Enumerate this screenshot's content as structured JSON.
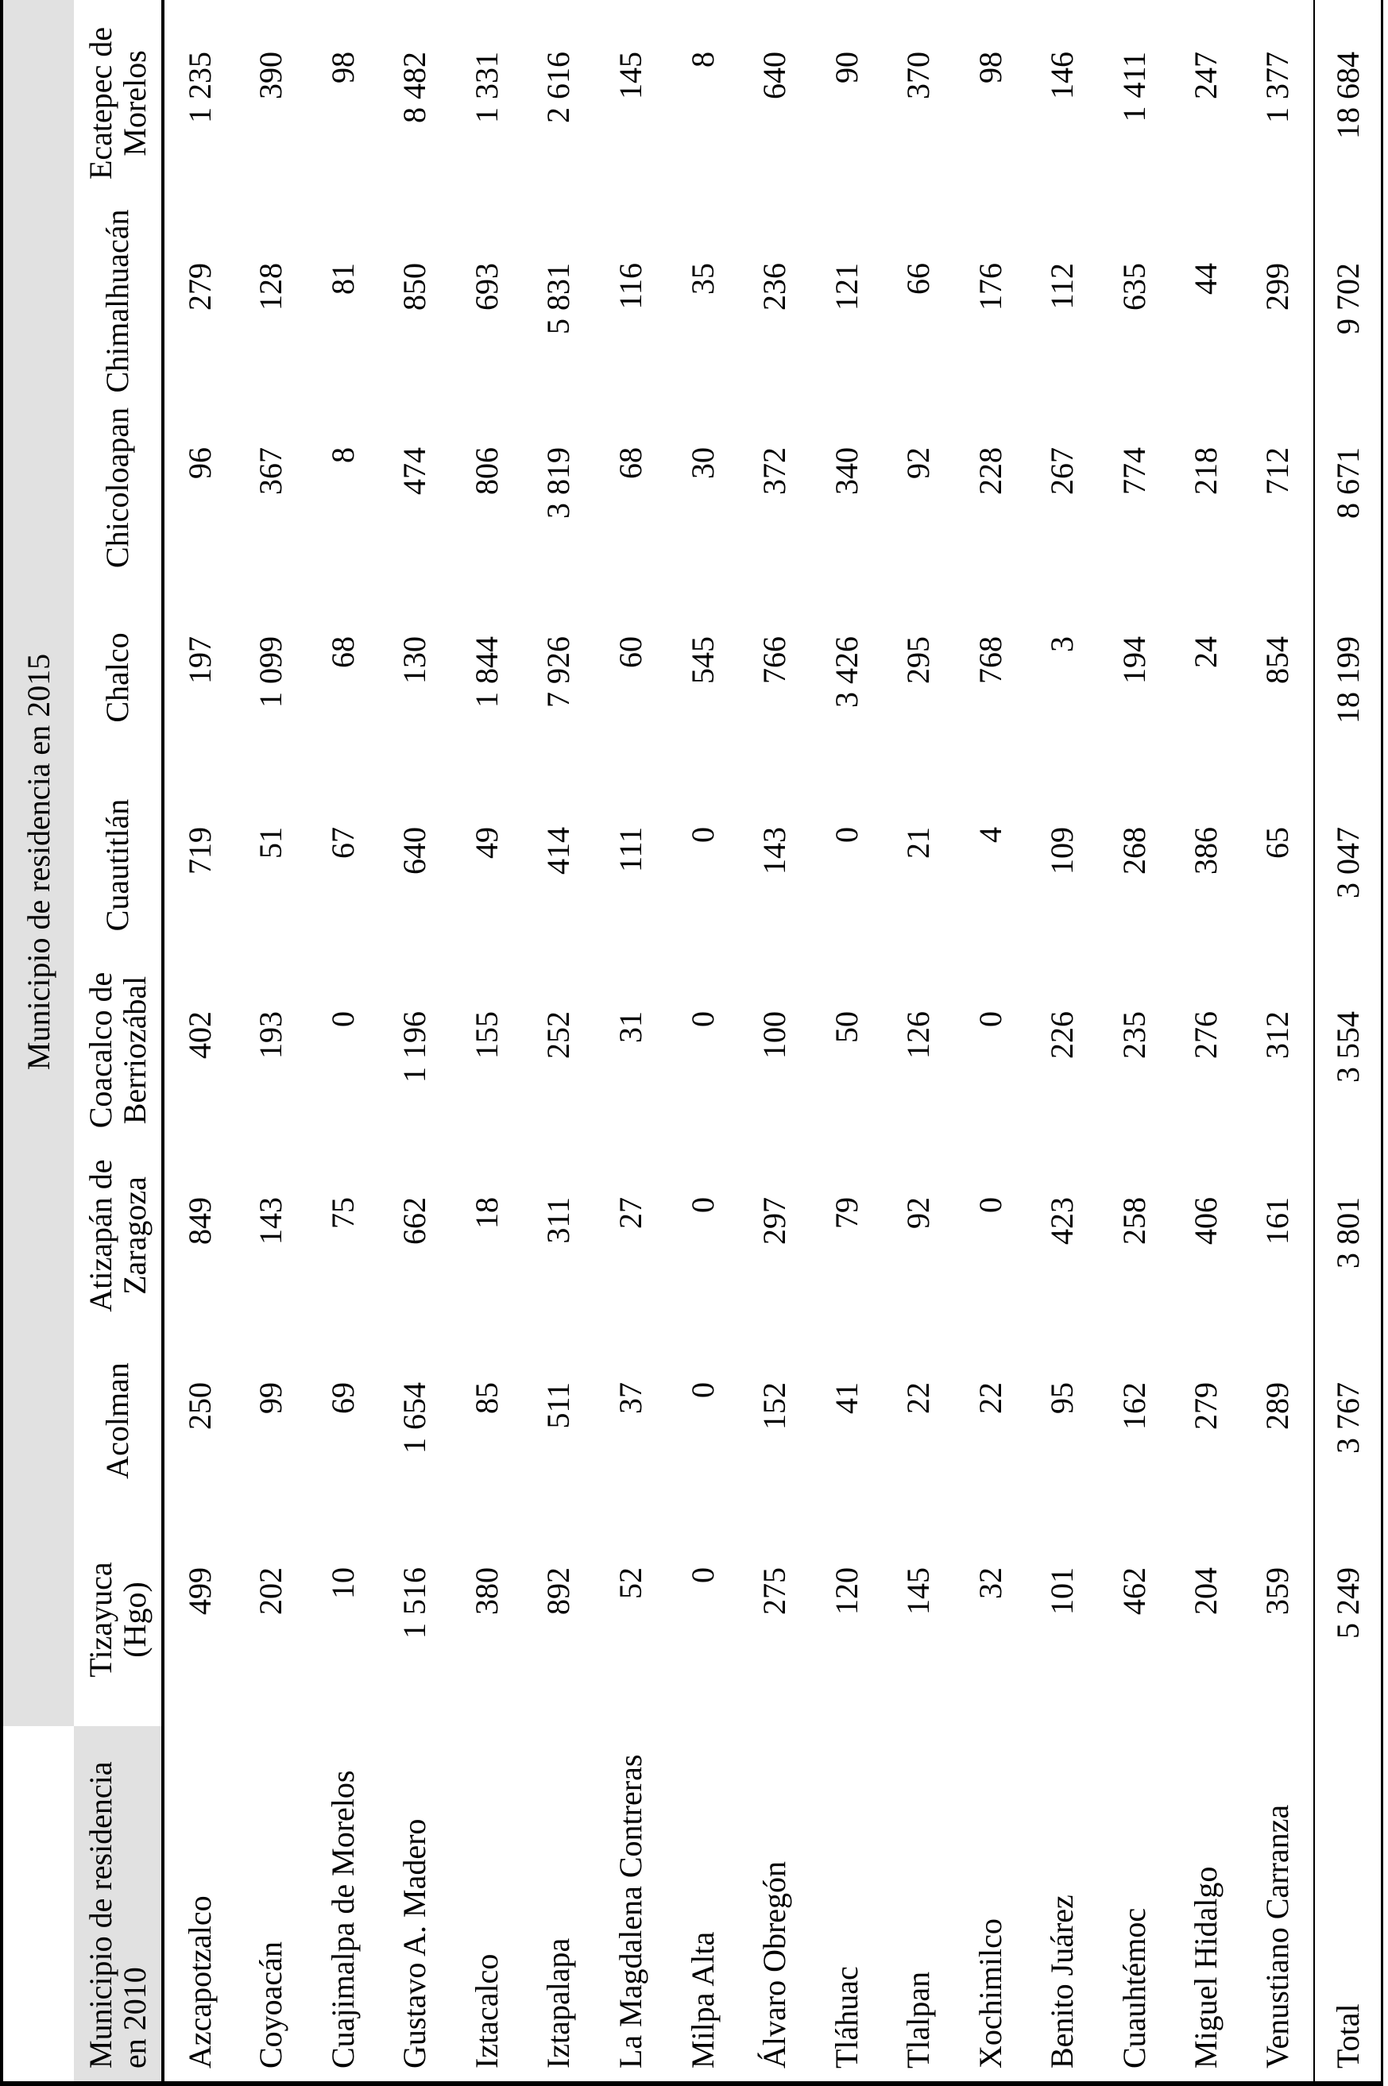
{
  "table": {
    "header_2015": "Municipio de residencia en 2015",
    "header_2010": {
      "line1": "Municipio de residencia",
      "line2": "en 2010"
    },
    "columns": [
      {
        "lines": [
          "Tizayuca",
          "(Hgo)"
        ]
      },
      {
        "lines": [
          "Acolman"
        ]
      },
      {
        "lines": [
          "Atizapán de",
          "Zaragoza"
        ]
      },
      {
        "lines": [
          "Coacalco de",
          "Berriozábal"
        ]
      },
      {
        "lines": [
          "Cuautitlán"
        ]
      },
      {
        "lines": [
          "Chalco"
        ]
      },
      {
        "lines": [
          "Chicoloapan"
        ]
      },
      {
        "lines": [
          "Chimalhuacán"
        ]
      },
      {
        "lines": [
          "Ecatepec de",
          "Morelos"
        ]
      }
    ],
    "rows": [
      {
        "label": "Azcapotzalco",
        "values": [
          "499",
          "250",
          "849",
          "402",
          "719",
          "197",
          "96",
          "279",
          "1 235"
        ]
      },
      {
        "label": "Coyoacán",
        "values": [
          "202",
          "99",
          "143",
          "193",
          "51",
          "1 099",
          "367",
          "128",
          "390"
        ]
      },
      {
        "label": "Cuajimalpa de Morelos",
        "values": [
          "10",
          "69",
          "75",
          "0",
          "67",
          "68",
          "8",
          "81",
          "98"
        ]
      },
      {
        "label": "Gustavo A. Madero",
        "values": [
          "1 516",
          "1 654",
          "662",
          "1 196",
          "640",
          "130",
          "474",
          "850",
          "8 482"
        ]
      },
      {
        "label": "Iztacalco",
        "values": [
          "380",
          "85",
          "18",
          "155",
          "49",
          "1 844",
          "806",
          "693",
          "1 331"
        ]
      },
      {
        "label": "Iztapalapa",
        "values": [
          "892",
          "511",
          "311",
          "252",
          "414",
          "7 926",
          "3 819",
          "5 831",
          "2 616"
        ]
      },
      {
        "label": "La Magdalena Contreras",
        "values": [
          "52",
          "37",
          "27",
          "31",
          "111",
          "60",
          "68",
          "116",
          "145"
        ]
      },
      {
        "label": "Milpa Alta",
        "values": [
          "0",
          "0",
          "0",
          "0",
          "0",
          "545",
          "30",
          "35",
          "8"
        ]
      },
      {
        "label": "Álvaro Obregón",
        "values": [
          "275",
          "152",
          "297",
          "100",
          "143",
          "766",
          "372",
          "236",
          "640"
        ]
      },
      {
        "label": "Tláhuac",
        "values": [
          "120",
          "41",
          "79",
          "50",
          "0",
          "3 426",
          "340",
          "121",
          "90"
        ]
      },
      {
        "label": "Tlalpan",
        "values": [
          "145",
          "22",
          "92",
          "126",
          "21",
          "295",
          "92",
          "66",
          "370"
        ]
      },
      {
        "label": "Xochimilco",
        "values": [
          "32",
          "22",
          "0",
          "0",
          "4",
          "768",
          "228",
          "176",
          "98"
        ]
      },
      {
        "label": "Benito Juárez",
        "values": [
          "101",
          "95",
          "423",
          "226",
          "109",
          "3",
          "267",
          "112",
          "146"
        ]
      },
      {
        "label": "Cuauhtémoc",
        "values": [
          "462",
          "162",
          "258",
          "235",
          "268",
          "194",
          "774",
          "635",
          "1 411"
        ]
      },
      {
        "label": "Miguel Hidalgo",
        "values": [
          "204",
          "279",
          "406",
          "276",
          "386",
          "24",
          "218",
          "44",
          "247"
        ]
      },
      {
        "label": "Venustiano Carranza",
        "values": [
          "359",
          "289",
          "161",
          "312",
          "65",
          "854",
          "712",
          "299",
          "1 377"
        ]
      }
    ],
    "total": {
      "label": "Total",
      "values": [
        "5 249",
        "3 767",
        "3 801",
        "3 554",
        "3 047",
        "18 199",
        "8 671",
        "9 702",
        "18 684"
      ]
    }
  },
  "colors": {
    "header_bg": "#e1e1e1",
    "rule": "#000000",
    "text": "#000000",
    "page_bg": "#ffffff"
  }
}
